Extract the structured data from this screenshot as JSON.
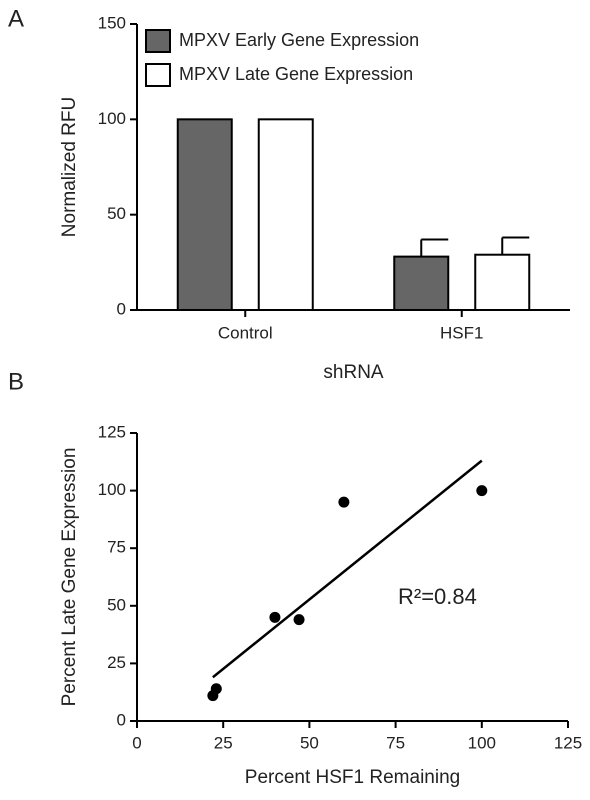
{
  "chart_data": [
    {
      "type": "bar",
      "label": "A",
      "y_label": "Normalized RFU",
      "x_label": "shRNA",
      "categories": [
        "Control",
        "HSF1"
      ],
      "series": [
        {
          "name": "MPXV Early Gene Expression",
          "color": "#666666",
          "values": [
            100,
            28
          ],
          "errors": [
            null,
            9
          ]
        },
        {
          "name": "MPXV Late Gene Expression",
          "color": "#ffffff",
          "values": [
            100,
            29
          ],
          "errors": [
            null,
            9
          ]
        }
      ],
      "ylim": [
        0,
        150
      ],
      "yticks": [
        0,
        50,
        100,
        150
      ]
    },
    {
      "type": "scatter",
      "label": "B",
      "x_label": "Percent HSF1 Remaining",
      "y_label": "Percent Late Gene Expression",
      "x": [
        22,
        23,
        40,
        47,
        60,
        100
      ],
      "y": [
        11,
        14,
        45,
        44,
        95,
        100
      ],
      "color": "#000000",
      "fit": {
        "x": [
          22,
          100
        ],
        "y": [
          19,
          113
        ]
      },
      "annotation": "R²=0.84",
      "xlim": [
        0,
        125
      ],
      "ylim": [
        0,
        125
      ],
      "xticks": [
        0,
        25,
        50,
        75,
        100,
        125
      ],
      "yticks": [
        0,
        25,
        50,
        75,
        100,
        125
      ]
    }
  ]
}
